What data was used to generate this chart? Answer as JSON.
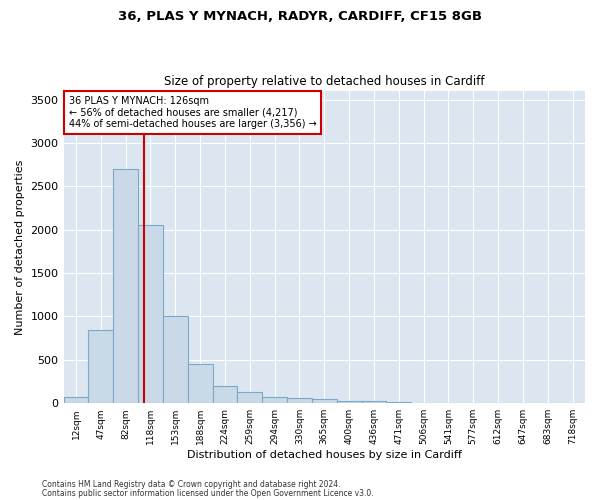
{
  "title1": "36, PLAS Y MYNACH, RADYR, CARDIFF, CF15 8GB",
  "title2": "Size of property relative to detached houses in Cardiff",
  "xlabel": "Distribution of detached houses by size in Cardiff",
  "ylabel": "Number of detached properties",
  "bar_labels": [
    "12sqm",
    "47sqm",
    "82sqm",
    "118sqm",
    "153sqm",
    "188sqm",
    "224sqm",
    "259sqm",
    "294sqm",
    "330sqm",
    "365sqm",
    "400sqm",
    "436sqm",
    "471sqm",
    "506sqm",
    "541sqm",
    "577sqm",
    "612sqm",
    "647sqm",
    "683sqm",
    "718sqm"
  ],
  "bar_values": [
    75,
    850,
    2700,
    2050,
    1000,
    450,
    200,
    130,
    70,
    55,
    50,
    30,
    25,
    10,
    5,
    3,
    2,
    1,
    1,
    0,
    0
  ],
  "bar_color": "#c9d9e8",
  "bar_edgecolor": "#7aaac8",
  "bar_linewidth": 0.8,
  "annotation_line1": "36 PLAS Y MYNACH: 126sqm",
  "annotation_line2": "← 56% of detached houses are smaller (4,217)",
  "annotation_line3": "44% of semi-detached houses are larger (3,356) →",
  "annotation_box_color": "#ffffff",
  "annotation_box_edgecolor": "#cc0000",
  "redline_color": "#cc0000",
  "plot_bg_color": "#dce6f0",
  "ylim": [
    0,
    3600
  ],
  "yticks": [
    0,
    500,
    1000,
    1500,
    2000,
    2500,
    3000,
    3500
  ],
  "footer1": "Contains HM Land Registry data © Crown copyright and database right 2024.",
  "footer2": "Contains public sector information licensed under the Open Government Licence v3.0."
}
